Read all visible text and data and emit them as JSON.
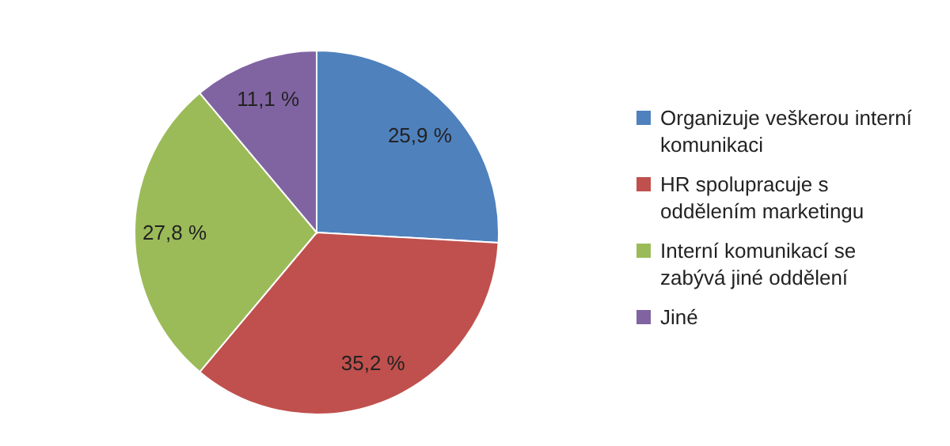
{
  "chart_data": {
    "type": "pie",
    "categories": [
      "Organizuje veškerou interní komunikaci",
      "HR spolupracuje s oddělením marketingu",
      "Interní komunikací se zabývá jiné oddělení",
      "Jiné"
    ],
    "values": [
      25.9,
      35.2,
      27.8,
      11.1
    ],
    "value_labels": [
      "25,9 %",
      "35,2 %",
      "27,8 %",
      "11,1 %"
    ],
    "colors": [
      "#4f81bd",
      "#c0504d",
      "#9bbb59",
      "#8064a2"
    ],
    "legend": "right"
  }
}
